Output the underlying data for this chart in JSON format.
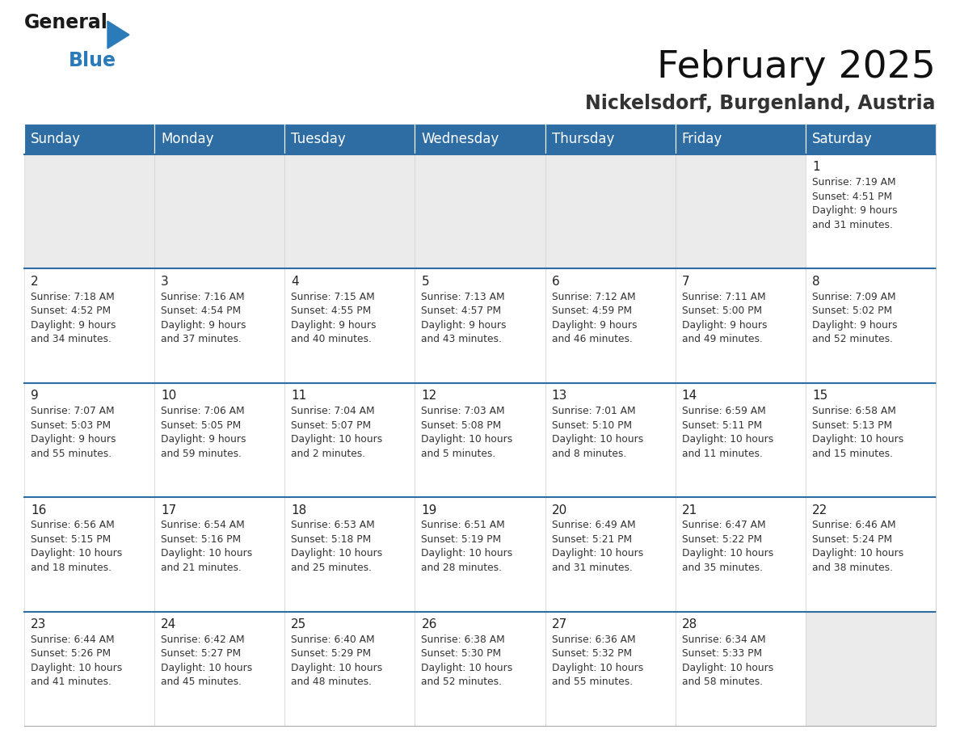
{
  "title": "February 2025",
  "subtitle": "Nickelsdorf, Burgenland, Austria",
  "header_bg": "#2E6DA4",
  "header_text": "#FFFFFF",
  "cell_bg_empty": "#EBEBEB",
  "cell_bg_filled": "#FFFFFF",
  "border_color": "#2E6DA4",
  "grid_line_color": "#CCCCCC",
  "day_names": [
    "Sunday",
    "Monday",
    "Tuesday",
    "Wednesday",
    "Thursday",
    "Friday",
    "Saturday"
  ],
  "weeks": [
    [
      {
        "day": null,
        "info": null
      },
      {
        "day": null,
        "info": null
      },
      {
        "day": null,
        "info": null
      },
      {
        "day": null,
        "info": null
      },
      {
        "day": null,
        "info": null
      },
      {
        "day": null,
        "info": null
      },
      {
        "day": 1,
        "info": "Sunrise: 7:19 AM\nSunset: 4:51 PM\nDaylight: 9 hours\nand 31 minutes."
      }
    ],
    [
      {
        "day": 2,
        "info": "Sunrise: 7:18 AM\nSunset: 4:52 PM\nDaylight: 9 hours\nand 34 minutes."
      },
      {
        "day": 3,
        "info": "Sunrise: 7:16 AM\nSunset: 4:54 PM\nDaylight: 9 hours\nand 37 minutes."
      },
      {
        "day": 4,
        "info": "Sunrise: 7:15 AM\nSunset: 4:55 PM\nDaylight: 9 hours\nand 40 minutes."
      },
      {
        "day": 5,
        "info": "Sunrise: 7:13 AM\nSunset: 4:57 PM\nDaylight: 9 hours\nand 43 minutes."
      },
      {
        "day": 6,
        "info": "Sunrise: 7:12 AM\nSunset: 4:59 PM\nDaylight: 9 hours\nand 46 minutes."
      },
      {
        "day": 7,
        "info": "Sunrise: 7:11 AM\nSunset: 5:00 PM\nDaylight: 9 hours\nand 49 minutes."
      },
      {
        "day": 8,
        "info": "Sunrise: 7:09 AM\nSunset: 5:02 PM\nDaylight: 9 hours\nand 52 minutes."
      }
    ],
    [
      {
        "day": 9,
        "info": "Sunrise: 7:07 AM\nSunset: 5:03 PM\nDaylight: 9 hours\nand 55 minutes."
      },
      {
        "day": 10,
        "info": "Sunrise: 7:06 AM\nSunset: 5:05 PM\nDaylight: 9 hours\nand 59 minutes."
      },
      {
        "day": 11,
        "info": "Sunrise: 7:04 AM\nSunset: 5:07 PM\nDaylight: 10 hours\nand 2 minutes."
      },
      {
        "day": 12,
        "info": "Sunrise: 7:03 AM\nSunset: 5:08 PM\nDaylight: 10 hours\nand 5 minutes."
      },
      {
        "day": 13,
        "info": "Sunrise: 7:01 AM\nSunset: 5:10 PM\nDaylight: 10 hours\nand 8 minutes."
      },
      {
        "day": 14,
        "info": "Sunrise: 6:59 AM\nSunset: 5:11 PM\nDaylight: 10 hours\nand 11 minutes."
      },
      {
        "day": 15,
        "info": "Sunrise: 6:58 AM\nSunset: 5:13 PM\nDaylight: 10 hours\nand 15 minutes."
      }
    ],
    [
      {
        "day": 16,
        "info": "Sunrise: 6:56 AM\nSunset: 5:15 PM\nDaylight: 10 hours\nand 18 minutes."
      },
      {
        "day": 17,
        "info": "Sunrise: 6:54 AM\nSunset: 5:16 PM\nDaylight: 10 hours\nand 21 minutes."
      },
      {
        "day": 18,
        "info": "Sunrise: 6:53 AM\nSunset: 5:18 PM\nDaylight: 10 hours\nand 25 minutes."
      },
      {
        "day": 19,
        "info": "Sunrise: 6:51 AM\nSunset: 5:19 PM\nDaylight: 10 hours\nand 28 minutes."
      },
      {
        "day": 20,
        "info": "Sunrise: 6:49 AM\nSunset: 5:21 PM\nDaylight: 10 hours\nand 31 minutes."
      },
      {
        "day": 21,
        "info": "Sunrise: 6:47 AM\nSunset: 5:22 PM\nDaylight: 10 hours\nand 35 minutes."
      },
      {
        "day": 22,
        "info": "Sunrise: 6:46 AM\nSunset: 5:24 PM\nDaylight: 10 hours\nand 38 minutes."
      }
    ],
    [
      {
        "day": 23,
        "info": "Sunrise: 6:44 AM\nSunset: 5:26 PM\nDaylight: 10 hours\nand 41 minutes."
      },
      {
        "day": 24,
        "info": "Sunrise: 6:42 AM\nSunset: 5:27 PM\nDaylight: 10 hours\nand 45 minutes."
      },
      {
        "day": 25,
        "info": "Sunrise: 6:40 AM\nSunset: 5:29 PM\nDaylight: 10 hours\nand 48 minutes."
      },
      {
        "day": 26,
        "info": "Sunrise: 6:38 AM\nSunset: 5:30 PM\nDaylight: 10 hours\nand 52 minutes."
      },
      {
        "day": 27,
        "info": "Sunrise: 6:36 AM\nSunset: 5:32 PM\nDaylight: 10 hours\nand 55 minutes."
      },
      {
        "day": 28,
        "info": "Sunrise: 6:34 AM\nSunset: 5:33 PM\nDaylight: 10 hours\nand 58 minutes."
      },
      {
        "day": null,
        "info": null
      }
    ]
  ],
  "logo_text_color": "#1a1a1a",
  "logo_blue_color": "#2b7bba",
  "fig_bg": "#FFFFFF",
  "title_fontsize": 34,
  "subtitle_fontsize": 17,
  "header_fontsize": 12,
  "day_num_fontsize": 11,
  "info_fontsize": 8.8
}
